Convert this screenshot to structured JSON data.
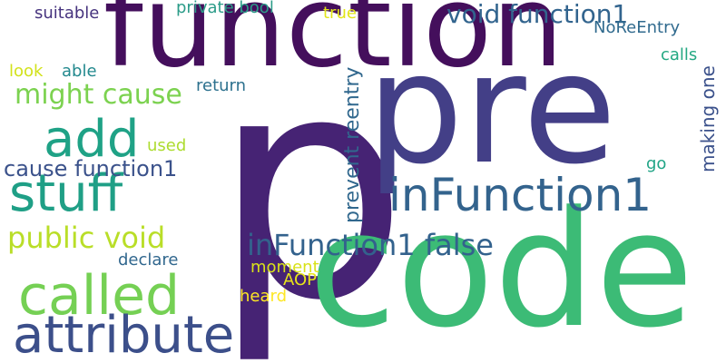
{
  "words": {
    "function_big": "function",
    "pre": "pre",
    "p": "p",
    "code": "code",
    "add": "add",
    "stuff": "stuff",
    "called": "called",
    "attribute": "attribute",
    "infunction1": "inFunction1",
    "void_function1": "void function1",
    "might_cause": "might cause",
    "public_void": "public void",
    "infunction1_false": "inFunction1 false",
    "cause_function1": "cause function1",
    "suitable": "suitable",
    "private_bool": "private bool",
    "true": "true",
    "noreentry": "NoReEntry",
    "calls": "calls",
    "look": "look",
    "able": "able",
    "return": "return",
    "used": "used",
    "go": "go",
    "declare": "declare",
    "moment": "moment",
    "aop": "AOP",
    "heard": "heard",
    "prevent_reentry": "prevent reentry",
    "making_one": "making one"
  },
  "colors": {
    "background": "#ffffff",
    "palette": "viridis"
  }
}
